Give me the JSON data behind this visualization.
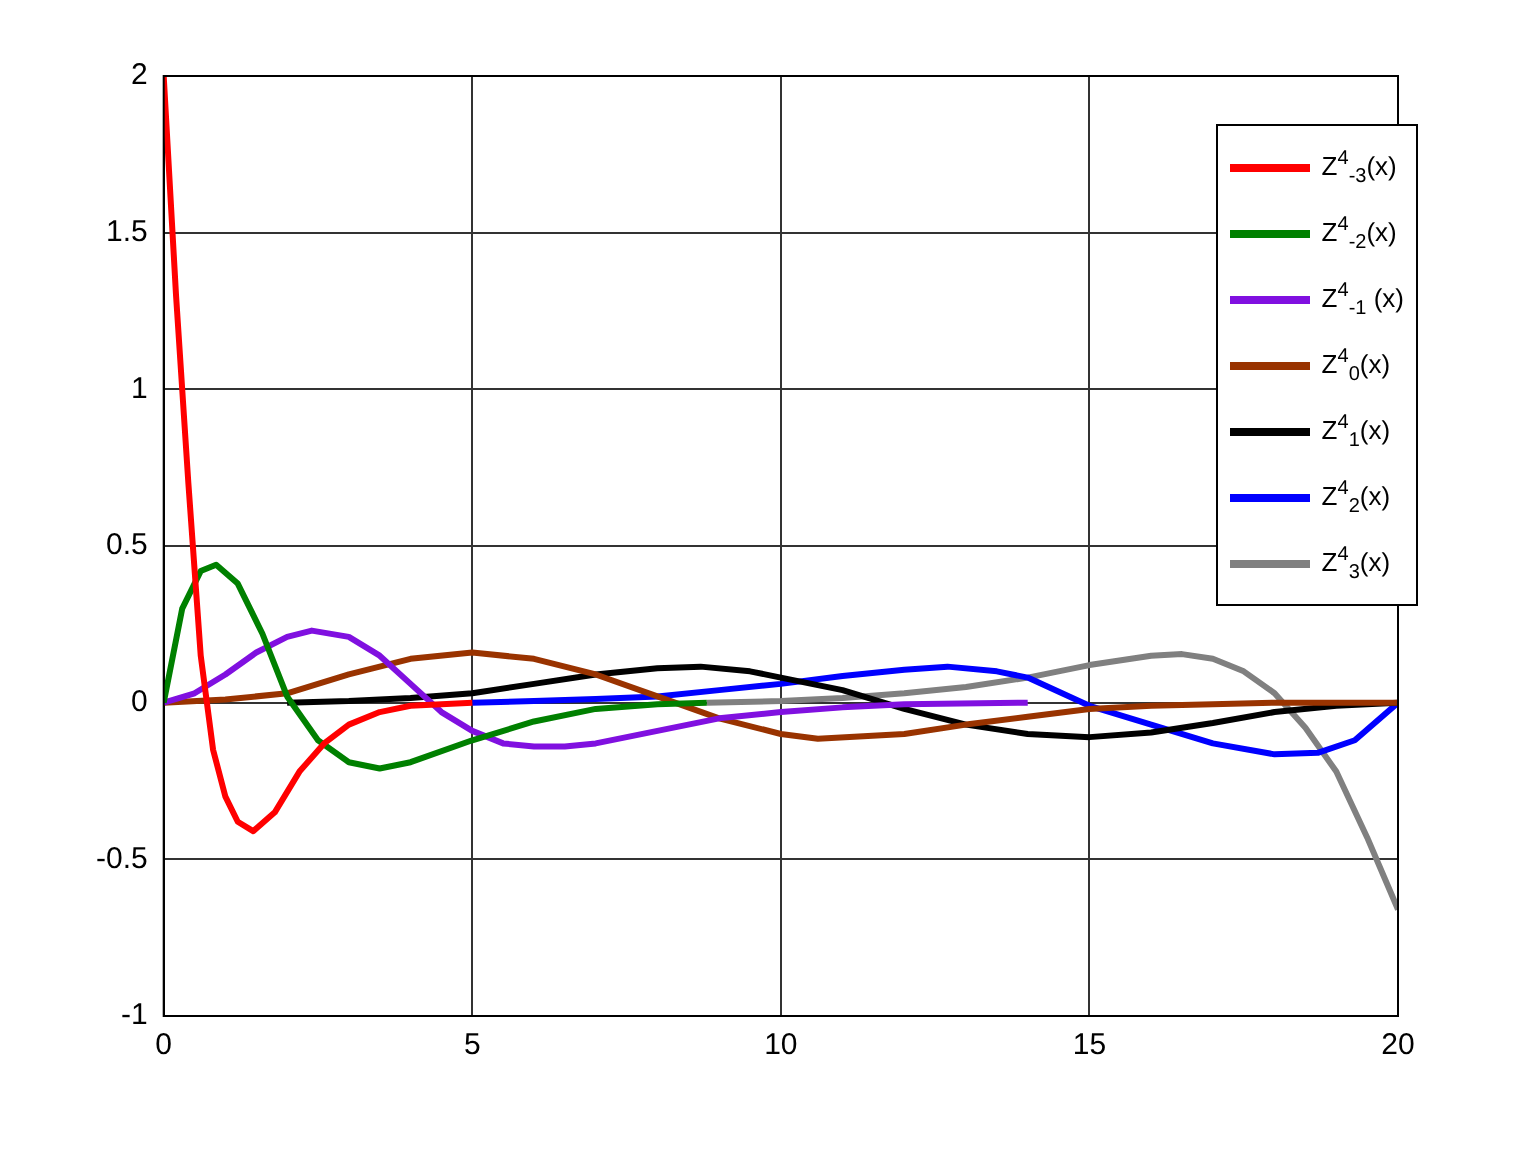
{
  "chart_data": {
    "type": "line",
    "xlim": [
      0,
      20
    ],
    "xticks": [
      0,
      5,
      10,
      15,
      20
    ],
    "ylim": [
      -1,
      2
    ],
    "yticks": [
      -1,
      -0.5,
      0,
      0.5,
      1,
      1.5,
      2
    ],
    "grid": true,
    "legend": "top right",
    "marker": "none",
    "line_style": "solid",
    "series": [
      {
        "name": "Z$^{4}$$_{-3}$(x)",
        "color": "#ff0000",
        "x": [
          0,
          0.2,
          0.4,
          0.6,
          0.8,
          1.0,
          1.2,
          1.45,
          1.8,
          2.2,
          2.6,
          3,
          3.5,
          4,
          5
        ],
        "values": [
          2.0,
          1.3,
          0.7,
          0.15,
          -0.15,
          -0.3,
          -0.38,
          -0.41,
          -0.35,
          -0.22,
          -0.13,
          -0.07,
          -0.03,
          -0.01,
          0
        ]
      },
      {
        "name": "Z$^{4}$$_{-2}$(x)",
        "color": "#008000",
        "x": [
          0,
          0.3,
          0.6,
          0.85,
          1.2,
          1.6,
          2.0,
          2.5,
          3,
          3.5,
          4,
          5,
          6,
          7,
          8,
          8.8
        ],
        "values": [
          0,
          0.3,
          0.42,
          0.44,
          0.38,
          0.22,
          0.02,
          -0.12,
          -0.19,
          -0.21,
          -0.19,
          -0.12,
          -0.06,
          -0.02,
          -0.005,
          0
        ]
      },
      {
        "name": "Z$^{4}$$_{-1}$ (x)",
        "color": "#8010e0",
        "x": [
          0,
          0.5,
          1,
          1.5,
          2,
          2.4,
          3,
          3.5,
          4,
          4.5,
          5,
          5.5,
          6,
          6.5,
          7,
          8,
          9,
          10,
          11,
          12,
          14
        ],
        "values": [
          0,
          0.03,
          0.09,
          0.16,
          0.21,
          0.23,
          0.21,
          0.15,
          0.06,
          -0.03,
          -0.09,
          -0.13,
          -0.14,
          -0.14,
          -0.13,
          -0.09,
          -0.05,
          -0.03,
          -0.015,
          -0.005,
          0
        ]
      },
      {
        "name": "Z$^{4}$$_{0}$(x)",
        "color": "#993300",
        "x": [
          0,
          1,
          2,
          3,
          4,
          5,
          6,
          7,
          8,
          9,
          10,
          10.6,
          12,
          13,
          14,
          15,
          16,
          17,
          18,
          20
        ],
        "values": [
          0,
          0.01,
          0.03,
          0.09,
          0.14,
          0.16,
          0.14,
          0.09,
          0.02,
          -0.05,
          -0.1,
          -0.115,
          -0.1,
          -0.07,
          -0.045,
          -0.02,
          -0.01,
          -0.005,
          0,
          0
        ]
      },
      {
        "name": "Z$^{4}$$_{1}$(x)",
        "color": "#000000",
        "x": [
          2,
          3,
          4,
          5,
          6,
          7,
          8,
          8.7,
          9.5,
          10,
          11,
          12,
          13,
          14,
          15,
          16,
          17,
          18,
          19,
          20
        ],
        "values": [
          0,
          0.005,
          0.015,
          0.03,
          0.06,
          0.09,
          0.11,
          0.115,
          0.1,
          0.08,
          0.04,
          -0.02,
          -0.07,
          -0.1,
          -0.11,
          -0.095,
          -0.065,
          -0.03,
          -0.01,
          0
        ]
      },
      {
        "name": "Z$^{4}$$_{2}$(x)",
        "color": "#0000ff",
        "x": [
          5,
          6,
          7,
          8,
          9,
          10,
          11,
          12,
          12.7,
          13.5,
          14,
          15,
          16,
          17,
          18,
          18.7,
          19.3,
          20
        ],
        "values": [
          0,
          0.005,
          0.012,
          0.02,
          0.04,
          0.06,
          0.085,
          0.105,
          0.115,
          0.1,
          0.08,
          -0.01,
          -0.07,
          -0.13,
          -0.165,
          -0.16,
          -0.12,
          0
        ]
      },
      {
        "name": "Z$^{4}$$_{3}$(x)",
        "color": "#808080",
        "x": [
          8.8,
          10,
          11,
          12,
          13,
          14,
          15,
          16,
          16.5,
          17,
          17.5,
          18,
          18.5,
          19,
          19.5,
          20
        ],
        "values": [
          0,
          0.005,
          0.015,
          0.03,
          0.05,
          0.08,
          0.12,
          0.15,
          0.155,
          0.14,
          0.1,
          0.03,
          -0.08,
          -0.22,
          -0.43,
          -0.66
        ]
      }
    ]
  }
}
